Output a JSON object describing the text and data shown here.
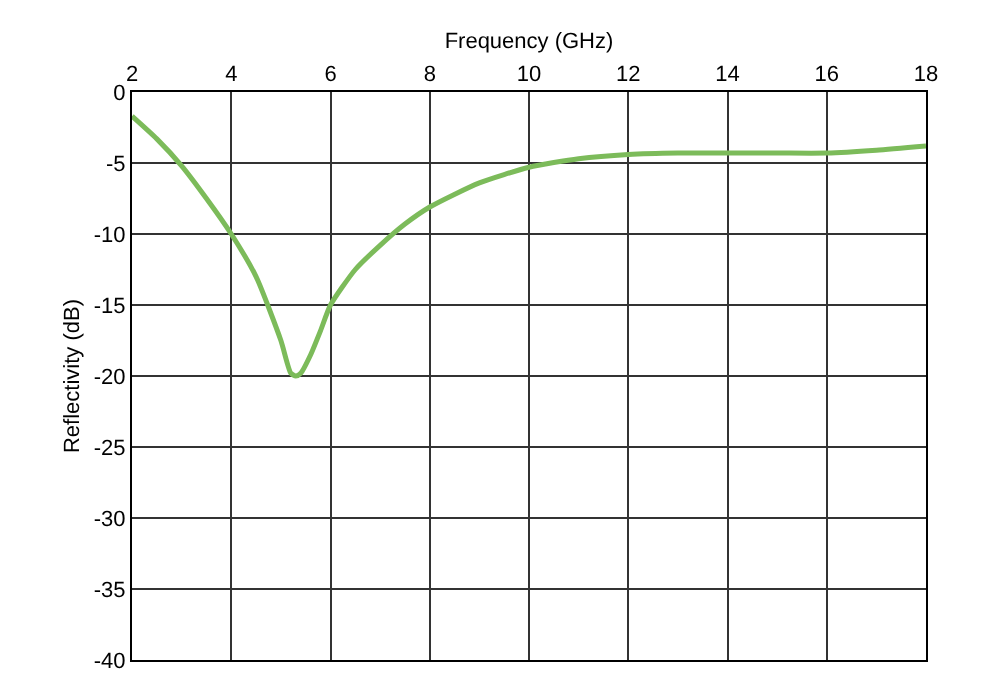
{
  "chart_data": {
    "type": "line",
    "xlabel": "Frequency (GHz)",
    "ylabel": "Reflectivity (dB)",
    "x": [
      2,
      2.5,
      3,
      3.5,
      4,
      4.5,
      5,
      5.2,
      5.3,
      5.4,
      5.6,
      5.8,
      6,
      6.5,
      7,
      7.5,
      8,
      9,
      10,
      11,
      12,
      13,
      14,
      15,
      16,
      17,
      18
    ],
    "series": [
      {
        "color": "#7cbb5a",
        "values": [
          -1.7,
          -3.3,
          -5.2,
          -7.5,
          -10,
          -13,
          -17.5,
          -19.8,
          -20,
          -19.8,
          -18.5,
          -16.8,
          -15,
          -12.5,
          -10.8,
          -9.3,
          -8.1,
          -6.4,
          -5.3,
          -4.7,
          -4.4,
          -4.3,
          -4.3,
          -4.3,
          -4.3,
          -4.1,
          -3.8
        ]
      }
    ],
    "xlim": [
      2,
      18
    ],
    "xticks": [
      2,
      4,
      6,
      8,
      10,
      12,
      14,
      16,
      18
    ],
    "ylim": [
      -40,
      0
    ],
    "yticks": [
      0,
      -5,
      -10,
      -15,
      -20,
      -25,
      -30,
      -35,
      -40
    ],
    "grid": true,
    "marker": "none",
    "line_style": "solid"
  }
}
